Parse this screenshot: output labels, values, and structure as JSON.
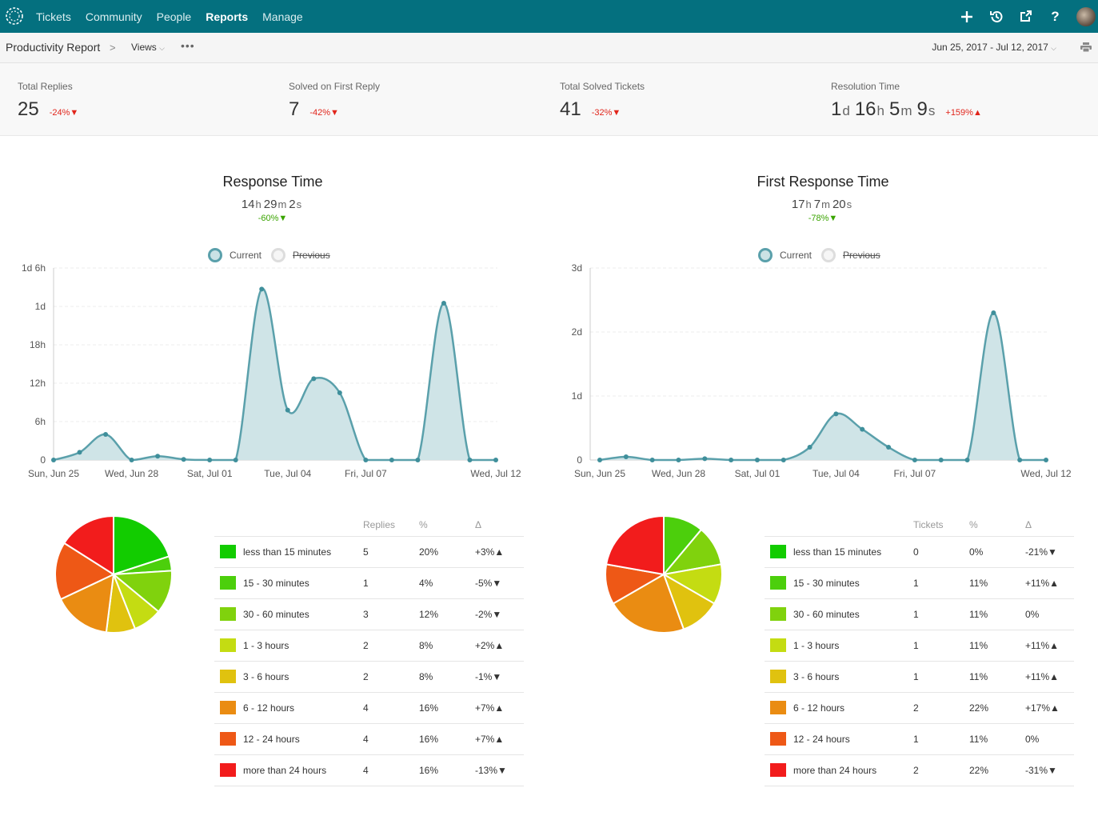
{
  "nav": {
    "items": [
      "Tickets",
      "Community",
      "People",
      "Reports",
      "Manage"
    ],
    "active": "Reports",
    "icons": [
      "plus-icon",
      "history-icon",
      "external-link-icon",
      "help-icon"
    ]
  },
  "subheader": {
    "breadcrumb": "Productivity Report",
    "views_label": "Views",
    "more_label": "•••",
    "date_range": "Jun 25, 2017 - Jul 12, 2017"
  },
  "stats": [
    {
      "label": "Total Replies",
      "value": "25",
      "change": "-24%▼"
    },
    {
      "label": "Solved on First Reply",
      "value": "7",
      "change": "-42%▼"
    },
    {
      "label": "Total Solved Tickets",
      "value": "41",
      "change": "-32%▼"
    },
    {
      "label": "Resolution Time",
      "parts": [
        [
          "1",
          "d"
        ],
        [
          "16",
          "h"
        ],
        [
          "5",
          "m"
        ],
        [
          "9",
          "s"
        ]
      ],
      "change": "+159%▲"
    }
  ],
  "panels": [
    {
      "title": "Response Time",
      "subtitle_parts": [
        [
          "14",
          "h"
        ],
        [
          "29",
          "m"
        ],
        [
          "2",
          "s"
        ]
      ],
      "delta": "-60%▼",
      "legend_current": "Current",
      "legend_previous": "Previous",
      "table_header": [
        "",
        "Replies",
        "%",
        "Δ"
      ],
      "rows": [
        {
          "color": "#12cc00",
          "label": "less than 15 minutes",
          "count": "5",
          "pct": "20%",
          "delta": "+3%▲"
        },
        {
          "color": "#4ccf0c",
          "label": "15 - 30 minutes",
          "count": "1",
          "pct": "4%",
          "delta": "-5%▼"
        },
        {
          "color": "#80d20d",
          "label": "30 - 60 minutes",
          "count": "3",
          "pct": "12%",
          "delta": "-2%▼"
        },
        {
          "color": "#c4dc12",
          "label": "1 - 3 hours",
          "count": "2",
          "pct": "8%",
          "delta": "+2%▲"
        },
        {
          "color": "#e0c20f",
          "label": "3 - 6 hours",
          "count": "2",
          "pct": "8%",
          "delta": "-1%▼"
        },
        {
          "color": "#ea8c12",
          "label": "6 - 12 hours",
          "count": "4",
          "pct": "16%",
          "delta": "+7%▲"
        },
        {
          "color": "#ee5816",
          "label": "12 - 24 hours",
          "count": "4",
          "pct": "16%",
          "delta": "+7%▲"
        },
        {
          "color": "#f21c1c",
          "label": "more than 24 hours",
          "count": "4",
          "pct": "16%",
          "delta": "-13%▼"
        }
      ]
    },
    {
      "title": "First Response Time",
      "subtitle_parts": [
        [
          "17",
          "h"
        ],
        [
          "7",
          "m"
        ],
        [
          "20",
          "s"
        ]
      ],
      "delta": "-78%▼",
      "legend_current": "Current",
      "legend_previous": "Previous",
      "table_header": [
        "",
        "Tickets",
        "%",
        "Δ"
      ],
      "rows": [
        {
          "color": "#12cc00",
          "label": "less than 15 minutes",
          "count": "0",
          "pct": "0%",
          "delta": "-21%▼"
        },
        {
          "color": "#4ccf0c",
          "label": "15 - 30 minutes",
          "count": "1",
          "pct": "11%",
          "delta": "+11%▲"
        },
        {
          "color": "#80d20d",
          "label": "30 - 60 minutes",
          "count": "1",
          "pct": "11%",
          "delta": "0%"
        },
        {
          "color": "#c4dc12",
          "label": "1 - 3 hours",
          "count": "1",
          "pct": "11%",
          "delta": "+11%▲"
        },
        {
          "color": "#e0c20f",
          "label": "3 - 6 hours",
          "count": "1",
          "pct": "11%",
          "delta": "+11%▲"
        },
        {
          "color": "#ea8c12",
          "label": "6 - 12 hours",
          "count": "2",
          "pct": "22%",
          "delta": "+17%▲"
        },
        {
          "color": "#ee5816",
          "label": "12 - 24 hours",
          "count": "1",
          "pct": "11%",
          "delta": "0%"
        },
        {
          "color": "#f21c1c",
          "label": "more than 24 hours",
          "count": "2",
          "pct": "22%",
          "delta": "-31%▼"
        }
      ]
    }
  ],
  "chart_data": [
    {
      "type": "area",
      "title": "Response Time",
      "y_unit": "hours",
      "ylim": [
        0,
        30
      ],
      "yticks": [
        0,
        6,
        12,
        18,
        24,
        30
      ],
      "ytick_labels": [
        "0",
        "6h",
        "12h",
        "18h",
        "1d",
        "1d 6h"
      ],
      "x": [
        "Sun, Jun 25",
        "Mon, Jun 26",
        "Tue, Jun 27",
        "Wed, Jun 28",
        "Thu, Jun 29",
        "Fri, Jun 30",
        "Sat, Jul 01",
        "Sun, Jul 02",
        "Mon, Jul 03",
        "Tue, Jul 04",
        "Wed, Jul 05",
        "Thu, Jul 06",
        "Fri, Jul 07",
        "Sat, Jul 08",
        "Sun, Jul 09",
        "Mon, Jul 10",
        "Tue, Jul 11",
        "Wed, Jul 12"
      ],
      "xtick_labels": [
        [
          0,
          "Sun, Jun 25"
        ],
        [
          3,
          "Wed, Jun 28"
        ],
        [
          6,
          "Sat, Jul 01"
        ],
        [
          9,
          "Tue, Jul 04"
        ],
        [
          12,
          "Fri, Jul 07"
        ],
        [
          17,
          "Wed, Jul 12"
        ]
      ],
      "series": [
        {
          "name": "Current",
          "values": [
            0,
            1.2,
            4,
            0,
            0.6,
            0.1,
            0,
            0,
            26.7,
            7.8,
            12.7,
            10.5,
            0,
            0,
            0,
            24.5,
            0,
            0
          ]
        }
      ],
      "legend": [
        "Current",
        "Previous"
      ],
      "grid": true,
      "pie": {
        "values": [
          20,
          4,
          12,
          8,
          8,
          16,
          16,
          16
        ]
      }
    },
    {
      "type": "area",
      "title": "First Response Time",
      "y_unit": "days",
      "ylim": [
        0,
        3
      ],
      "yticks": [
        0,
        1,
        2,
        3
      ],
      "ytick_labels": [
        "0",
        "1d",
        "2d",
        "3d"
      ],
      "x": [
        "Sun, Jun 25",
        "Mon, Jun 26",
        "Tue, Jun 27",
        "Wed, Jun 28",
        "Thu, Jun 29",
        "Fri, Jun 30",
        "Sat, Jul 01",
        "Sun, Jul 02",
        "Mon, Jul 03",
        "Tue, Jul 04",
        "Wed, Jul 05",
        "Thu, Jul 06",
        "Fri, Jul 07",
        "Sat, Jul 08",
        "Sun, Jul 09",
        "Mon, Jul 10",
        "Tue, Jul 11",
        "Wed, Jul 12"
      ],
      "xtick_labels": [
        [
          0,
          "Sun, Jun 25"
        ],
        [
          3,
          "Wed, Jun 28"
        ],
        [
          6,
          "Sat, Jul 01"
        ],
        [
          9,
          "Tue, Jul 04"
        ],
        [
          12,
          "Fri, Jul 07"
        ],
        [
          17,
          "Wed, Jul 12"
        ]
      ],
      "series": [
        {
          "name": "Current",
          "values": [
            0,
            0.05,
            0,
            0,
            0.02,
            0,
            0,
            0,
            0.2,
            0.72,
            0.48,
            0.2,
            0,
            0,
            0,
            2.3,
            0,
            0
          ]
        }
      ],
      "legend": [
        "Current",
        "Previous"
      ],
      "grid": true,
      "pie": {
        "values": [
          0,
          11,
          11,
          11,
          11,
          22,
          11,
          22
        ]
      }
    }
  ]
}
